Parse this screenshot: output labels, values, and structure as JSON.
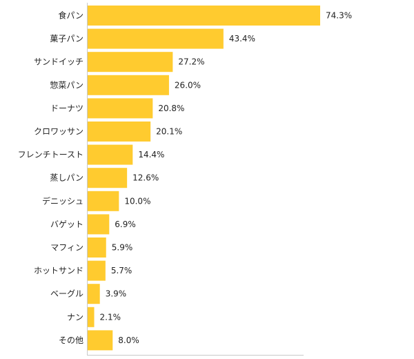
{
  "chart_data": {
    "type": "bar",
    "orientation": "horizontal",
    "title": "",
    "xlabel": "",
    "ylabel": "",
    "xlim": [
      0,
      100
    ],
    "grid": false,
    "legend": "none",
    "bar_color": "#ffcb2f",
    "value_suffix": "%",
    "categories": [
      "食パン",
      "菓子パン",
      "サンドイッチ",
      "惣菜パン",
      "ドーナツ",
      "クロワッサン",
      "フレンチトースト",
      "蒸しパン",
      "デニッシュ",
      "バゲット",
      "マフィン",
      "ホットサンド",
      "ベーグル",
      "ナン",
      "その他"
    ],
    "values": [
      74.3,
      43.4,
      27.2,
      26.0,
      20.8,
      20.1,
      14.4,
      12.6,
      10.0,
      6.9,
      5.9,
      5.7,
      3.9,
      2.1,
      8.0
    ],
    "value_labels": [
      "74.3%",
      "43.4%",
      "27.2%",
      "26.0%",
      "20.8%",
      "20.1%",
      "14.4%",
      "12.6%",
      "10.0%",
      "6.9%",
      "5.9%",
      "5.7%",
      "3.9%",
      "2.1%",
      "8.0%"
    ]
  }
}
